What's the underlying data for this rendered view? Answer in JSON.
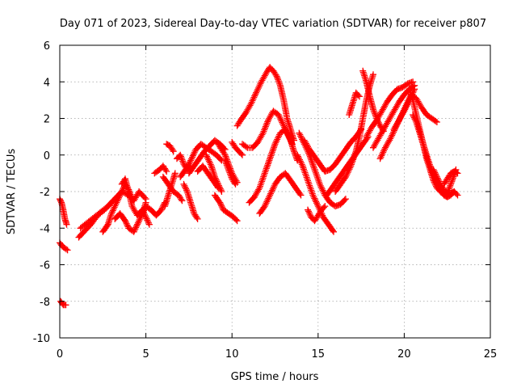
{
  "chart_data": {
    "type": "scatter",
    "title": "Day 071 of 2023, Sidereal Day-to-day VTEC variation (SDTVAR) for receiver p807",
    "xlabel": "GPS time / hours",
    "ylabel": "SDTVAR / TECUs",
    "xlim": [
      0,
      25
    ],
    "ylim": [
      -10,
      6
    ],
    "x_ticks": [
      0,
      5,
      10,
      15,
      20,
      25
    ],
    "y_ticks": [
      -10,
      -8,
      -6,
      -4,
      -2,
      0,
      2,
      4,
      6
    ],
    "x_tick_labels": [
      "0",
      "5",
      "10",
      "15",
      "20",
      "25"
    ],
    "y_tick_labels": [
      "-10",
      "-8",
      "-6",
      "-4",
      "-2",
      "0",
      "2",
      "4",
      "6"
    ],
    "grid": true,
    "marker": "plus",
    "color": "#ff0000",
    "series": [
      {
        "name": "t0",
        "x": [
          0.0,
          0.1,
          0.2,
          0.3,
          0.4
        ],
        "y": [
          -2.4,
          -2.6,
          -3.0,
          -3.5,
          -3.8
        ]
      },
      {
        "name": "t1",
        "x": [
          0.0,
          0.15,
          0.3,
          0.45
        ],
        "y": [
          -4.8,
          -5.0,
          -5.1,
          -5.2
        ]
      },
      {
        "name": "t2",
        "x": [
          0.05,
          0.2,
          0.35
        ],
        "y": [
          -8.0,
          -8.2,
          -8.2
        ]
      },
      {
        "name": "t3",
        "x": [
          1.1,
          1.4,
          1.8,
          2.2,
          2.6,
          3.0,
          3.3,
          3.6,
          4.0,
          4.3,
          4.6,
          5.0
        ],
        "y": [
          -4.5,
          -4.2,
          -3.8,
          -3.3,
          -3.0,
          -2.6,
          -2.3,
          -2.0,
          -2.2,
          -2.5,
          -2.0,
          -2.4
        ]
      },
      {
        "name": "t4",
        "x": [
          1.2,
          1.6,
          2.0,
          2.4,
          2.8,
          3.1
        ],
        "y": [
          -4.0,
          -3.7,
          -3.4,
          -3.1,
          -2.8,
          -2.5
        ]
      },
      {
        "name": "t5",
        "x": [
          2.5,
          2.8,
          3.0,
          3.3,
          3.6,
          3.8,
          4.0,
          4.2
        ],
        "y": [
          -4.2,
          -3.8,
          -3.2,
          -2.6,
          -2.0,
          -1.6,
          -1.9,
          -2.4
        ]
      },
      {
        "name": "t6",
        "x": [
          3.2,
          3.5,
          3.8,
          4.0,
          4.3,
          4.5,
          4.8,
          5.0
        ],
        "y": [
          -3.5,
          -3.2,
          -3.6,
          -4.0,
          -4.2,
          -3.8,
          -3.2,
          -2.6
        ]
      },
      {
        "name": "t7",
        "x": [
          3.6,
          3.8,
          4.0,
          4.2,
          4.5,
          4.8,
          5.0,
          5.2
        ],
        "y": [
          -1.6,
          -1.3,
          -2.0,
          -2.8,
          -3.3,
          -3.0,
          -3.4,
          -3.8
        ]
      },
      {
        "name": "t8",
        "x": [
          4.8,
          5.0,
          5.3,
          5.6,
          5.9,
          6.1
        ],
        "y": [
          -3.2,
          -2.8,
          -3.0,
          -3.3,
          -3.0,
          -2.6
        ]
      },
      {
        "name": "t9",
        "x": [
          5.5,
          5.8,
          6.0,
          6.2
        ],
        "y": [
          -1.0,
          -0.8,
          -0.6,
          -0.9
        ]
      },
      {
        "name": "t10",
        "x": [
          6.0,
          6.3,
          6.6,
          6.9,
          7.1
        ],
        "y": [
          -1.2,
          -1.6,
          -2.0,
          -2.2,
          -2.5
        ]
      },
      {
        "name": "t11",
        "x": [
          6.1,
          6.3,
          6.5,
          6.7
        ],
        "y": [
          -2.8,
          -2.2,
          -1.6,
          -1.0
        ]
      },
      {
        "name": "t12",
        "x": [
          6.2,
          6.4,
          6.6
        ],
        "y": [
          0.6,
          0.5,
          0.2
        ]
      },
      {
        "name": "t13",
        "x": [
          6.8,
          7.0,
          7.2,
          7.4,
          7.6
        ],
        "y": [
          -0.2,
          0.0,
          -0.5,
          -0.8,
          -0.6
        ]
      },
      {
        "name": "t14",
        "x": [
          7.0,
          7.3,
          7.6,
          7.9,
          8.2,
          8.5,
          8.8,
          9.1,
          9.4
        ],
        "y": [
          -1.2,
          -0.8,
          -0.3,
          0.3,
          0.6,
          0.4,
          0.2,
          0.0,
          -0.3
        ]
      },
      {
        "name": "t15",
        "x": [
          7.2,
          7.4,
          7.6,
          7.8,
          8.0
        ],
        "y": [
          -1.6,
          -2.0,
          -2.6,
          -3.2,
          -3.5
        ]
      },
      {
        "name": "t16",
        "x": [
          7.5,
          7.8,
          8.1,
          8.4,
          8.7,
          9.0,
          9.3,
          9.6
        ],
        "y": [
          -1.0,
          -0.6,
          -0.2,
          0.2,
          0.5,
          0.8,
          0.6,
          0.3
        ]
      },
      {
        "name": "t17",
        "x": [
          8.0,
          8.3,
          8.6,
          8.9,
          9.2
        ],
        "y": [
          -0.9,
          -0.6,
          -1.0,
          -1.4,
          -1.8
        ]
      },
      {
        "name": "t18",
        "x": [
          8.5,
          8.8,
          9.0,
          9.2,
          9.4
        ],
        "y": [
          0.0,
          -0.6,
          -1.2,
          -1.6,
          -2.0
        ]
      },
      {
        "name": "t19",
        "x": [
          9.0,
          9.3,
          9.5,
          9.8,
          10.1,
          10.3
        ],
        "y": [
          -2.2,
          -2.6,
          -3.0,
          -3.2,
          -3.4,
          -3.6
        ]
      },
      {
        "name": "t20",
        "x": [
          9.2,
          9.4,
          9.6,
          9.8,
          10.0,
          10.3
        ],
        "y": [
          0.6,
          0.3,
          0.0,
          -0.5,
          -1.0,
          -1.5
        ]
      },
      {
        "name": "t21",
        "x": [
          9.6,
          9.8,
          10.0,
          10.2
        ],
        "y": [
          -0.3,
          -0.8,
          -1.3,
          -1.6
        ]
      },
      {
        "name": "t22",
        "x": [
          10.0,
          10.2,
          10.4,
          10.6
        ],
        "y": [
          0.7,
          0.4,
          0.2,
          0.0
        ]
      },
      {
        "name": "t23",
        "x": [
          10.3,
          10.5,
          10.8,
          11.1,
          11.4,
          11.7,
          12.0,
          12.2,
          12.4,
          12.6,
          12.8,
          13.0,
          13.2,
          13.4,
          13.6
        ],
        "y": [
          1.6,
          1.9,
          2.3,
          2.8,
          3.4,
          4.0,
          4.5,
          4.8,
          4.6,
          4.3,
          3.8,
          3.0,
          2.0,
          1.4,
          0.8
        ]
      },
      {
        "name": "t24",
        "x": [
          10.6,
          10.9,
          11.2,
          11.5,
          11.8,
          12.1,
          12.4,
          12.7,
          13.0,
          13.3,
          13.5
        ],
        "y": [
          0.6,
          0.4,
          0.4,
          0.7,
          1.2,
          1.9,
          2.4,
          2.2,
          1.6,
          1.0,
          0.6
        ]
      },
      {
        "name": "t25",
        "x": [
          11.0,
          11.3,
          11.6,
          11.9,
          12.2,
          12.5,
          12.8,
          13.1,
          13.4,
          13.6,
          13.8
        ],
        "y": [
          -2.6,
          -2.3,
          -1.8,
          -1.0,
          -0.2,
          0.6,
          1.2,
          1.4,
          0.8,
          0.2,
          -0.3
        ]
      },
      {
        "name": "t26",
        "x": [
          11.6,
          11.9,
          12.2,
          12.5,
          12.8,
          13.1,
          13.4,
          13.7,
          14.0
        ],
        "y": [
          -3.2,
          -2.8,
          -2.2,
          -1.6,
          -1.2,
          -1.0,
          -1.4,
          -1.8,
          -2.2
        ]
      },
      {
        "name": "t27",
        "x": [
          13.8,
          14.1,
          14.4,
          14.7,
          15.0,
          15.3,
          15.6,
          15.9
        ],
        "y": [
          0.0,
          -0.6,
          -1.4,
          -2.2,
          -2.8,
          -3.4,
          -3.8,
          -4.2
        ]
      },
      {
        "name": "t28",
        "x": [
          13.9,
          14.2,
          14.5,
          14.8,
          15.1,
          15.4,
          15.7,
          16.0,
          16.3,
          16.6
        ],
        "y": [
          1.2,
          0.6,
          0.0,
          -0.8,
          -1.6,
          -2.2,
          -2.6,
          -2.8,
          -2.7,
          -2.4
        ]
      },
      {
        "name": "t29",
        "x": [
          14.2,
          14.5,
          14.8,
          15.1,
          15.4,
          15.7,
          16.0,
          16.3,
          16.6,
          16.9,
          17.2,
          17.5
        ],
        "y": [
          0.8,
          0.3,
          -0.1,
          -0.5,
          -0.9,
          -0.8,
          -0.5,
          -0.1,
          0.3,
          0.7,
          1.0,
          1.4
        ]
      },
      {
        "name": "t30",
        "x": [
          14.4,
          14.6,
          14.8,
          15.0,
          15.2,
          15.4
        ],
        "y": [
          -3.0,
          -3.4,
          -3.6,
          -3.3,
          -3.0,
          -2.8
        ]
      },
      {
        "name": "t31",
        "x": [
          15.5,
          15.8,
          16.1,
          16.4,
          16.7,
          17.0,
          17.3,
          17.6,
          17.9
        ],
        "y": [
          -2.2,
          -1.8,
          -1.4,
          -1.0,
          -0.6,
          -0.2,
          0.2,
          0.6,
          1.0
        ]
      },
      {
        "name": "t32",
        "x": [
          16.0,
          16.3,
          16.6,
          16.9,
          17.2,
          17.4,
          17.6,
          17.8,
          18.0,
          18.2
        ],
        "y": [
          -2.0,
          -1.6,
          -1.2,
          -0.6,
          0.2,
          1.0,
          2.0,
          3.0,
          3.8,
          4.4
        ]
      },
      {
        "name": "t33",
        "x": [
          16.8,
          17.0,
          17.2,
          17.4
        ],
        "y": [
          2.2,
          2.8,
          3.4,
          3.2
        ]
      },
      {
        "name": "t34",
        "x": [
          17.6,
          17.8,
          18.0,
          18.2,
          18.4,
          18.6,
          18.8
        ],
        "y": [
          4.6,
          4.0,
          3.2,
          2.5,
          2.0,
          1.6,
          1.3
        ]
      },
      {
        "name": "t35",
        "x": [
          17.8,
          18.1,
          18.4,
          18.7,
          19.0,
          19.3,
          19.6,
          19.9,
          20.2,
          20.5
        ],
        "y": [
          1.0,
          1.5,
          1.9,
          2.4,
          2.9,
          3.3,
          3.6,
          3.7,
          3.9,
          4.0
        ]
      },
      {
        "name": "t36",
        "x": [
          18.2,
          18.5,
          18.8,
          19.1,
          19.4,
          19.7,
          20.0,
          20.3,
          20.6
        ],
        "y": [
          0.4,
          0.9,
          1.4,
          1.9,
          2.4,
          2.9,
          3.3,
          3.6,
          3.8
        ]
      },
      {
        "name": "t37",
        "x": [
          18.6,
          18.9,
          19.2,
          19.5,
          19.8,
          20.1,
          20.4,
          20.7,
          21.0,
          21.3,
          21.6,
          21.9
        ],
        "y": [
          -0.2,
          0.4,
          0.9,
          1.5,
          2.1,
          2.7,
          3.3,
          3.1,
          2.6,
          2.2,
          2.0,
          1.8
        ]
      },
      {
        "name": "t38",
        "x": [
          19.4,
          19.7,
          20.0,
          20.3,
          20.6
        ],
        "y": [
          1.4,
          1.9,
          2.4,
          3.0,
          3.6
        ]
      },
      {
        "name": "t39",
        "x": [
          20.3,
          20.5,
          20.7,
          20.9,
          21.1,
          21.3,
          21.5,
          21.7,
          21.9,
          22.1,
          22.3,
          22.5,
          22.7,
          22.9,
          23.1
        ],
        "y": [
          3.6,
          3.0,
          2.2,
          1.4,
          0.6,
          -0.2,
          -0.8,
          -1.4,
          -1.8,
          -2.0,
          -2.1,
          -2.2,
          -2.1,
          -2.0,
          -2.2
        ]
      },
      {
        "name": "t40",
        "x": [
          20.5,
          20.7,
          20.9,
          21.1,
          21.3,
          21.5,
          21.7,
          21.9,
          22.1,
          22.3,
          22.5,
          22.7,
          22.9
        ],
        "y": [
          2.2,
          1.8,
          1.2,
          0.6,
          0.0,
          -0.6,
          -1.1,
          -1.5,
          -1.9,
          -2.2,
          -2.3,
          -2.2,
          -2.0
        ]
      },
      {
        "name": "t41",
        "x": [
          21.7,
          21.9,
          22.1,
          22.3,
          22.5,
          22.7,
          22.9,
          23.0
        ],
        "y": [
          -0.8,
          -1.2,
          -1.6,
          -1.9,
          -2.1,
          -1.6,
          -1.1,
          -0.8
        ]
      },
      {
        "name": "t42",
        "x": [
          22.3,
          22.5,
          22.7,
          22.9,
          23.1
        ],
        "y": [
          -1.6,
          -1.3,
          -1.0,
          -0.9,
          -1.0
        ]
      }
    ]
  }
}
